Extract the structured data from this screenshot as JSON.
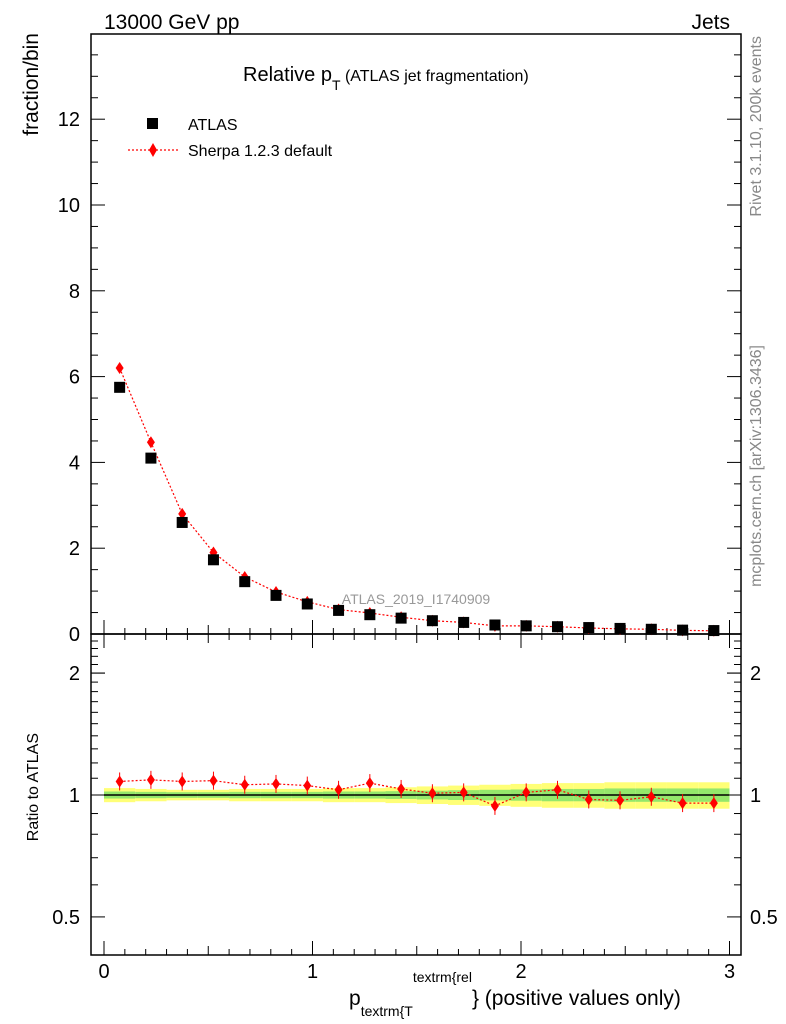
{
  "header": {
    "left": "13000 GeV pp",
    "right": "Jets"
  },
  "side_labels": {
    "top": "Rivet 3.1.10,  200k events",
    "bottom": "mcplots.cern.ch [arXiv:1306.3436]"
  },
  "main_plot": {
    "title_main": "Relative p",
    "title_sub": "T",
    "title_rest": " (ATLAS jet fragmentation)",
    "ylabel": "fraction/bin",
    "watermark": "ATLAS_2019_I1740909",
    "y_ticks": [
      "0",
      "2",
      "4",
      "6",
      "8",
      "10",
      "12"
    ]
  },
  "ratio_plot": {
    "ylabel": "Ratio to ATLAS",
    "y_ticks": [
      "0.5",
      "1",
      "2"
    ]
  },
  "x_axis": {
    "ticks": [
      "0",
      "1",
      "2",
      "3"
    ],
    "label_main": "p",
    "label_sub": "textrm{T",
    "label_sup": "textrm{rel",
    "label_rest": "} (positive values only)"
  },
  "legend": {
    "data_label": "ATLAS",
    "mc_label": "Sherpa 1.2.3 default"
  },
  "colors": {
    "data": "#000000",
    "mc": "#ff0000",
    "band_outer": "#ffff77",
    "band_inner": "#66dd66"
  },
  "chart_data": {
    "type": "scatter",
    "x": [
      0.075,
      0.225,
      0.375,
      0.525,
      0.675,
      0.825,
      0.975,
      1.125,
      1.275,
      1.425,
      1.575,
      1.725,
      1.875,
      2.025,
      2.175,
      2.325,
      2.475,
      2.625,
      2.775,
      2.925
    ],
    "series": [
      {
        "name": "ATLAS",
        "values": [
          5.75,
          4.1,
          2.6,
          1.73,
          1.22,
          0.9,
          0.7,
          0.55,
          0.45,
          0.37,
          0.31,
          0.27,
          0.21,
          0.19,
          0.17,
          0.15,
          0.13,
          0.11,
          0.09,
          0.08
        ]
      },
      {
        "name": "Sherpa 1.2.3 default",
        "values": [
          6.2,
          4.47,
          2.8,
          1.9,
          1.33,
          0.98,
          0.75,
          0.57,
          0.49,
          0.39,
          0.31,
          0.27,
          0.19,
          0.19,
          0.17,
          0.14,
          0.12,
          0.11,
          0.085,
          0.075
        ]
      }
    ],
    "ratio": {
      "x": [
        0.075,
        0.225,
        0.375,
        0.525,
        0.675,
        0.825,
        0.975,
        1.125,
        1.275,
        1.425,
        1.575,
        1.725,
        1.875,
        2.025,
        2.175,
        2.325,
        2.475,
        2.625,
        2.775,
        2.925
      ],
      "values": [
        1.08,
        1.09,
        1.08,
        1.085,
        1.06,
        1.065,
        1.055,
        1.03,
        1.07,
        1.035,
        1.01,
        1.015,
        0.94,
        1.015,
        1.03,
        0.975,
        0.97,
        0.99,
        0.955,
        0.955
      ],
      "band_outer": [
        0.04,
        0.035,
        0.03,
        0.03,
        0.035,
        0.035,
        0.035,
        0.04,
        0.04,
        0.045,
        0.05,
        0.055,
        0.06,
        0.065,
        0.07,
        0.07,
        0.075,
        0.075,
        0.075,
        0.075
      ],
      "band_inner": [
        0.02,
        0.018,
        0.016,
        0.016,
        0.018,
        0.018,
        0.018,
        0.02,
        0.02,
        0.022,
        0.025,
        0.028,
        0.03,
        0.032,
        0.035,
        0.035,
        0.038,
        0.038,
        0.038,
        0.038
      ]
    },
    "title": "Relative pT (ATLAS jet fragmentation)",
    "xlabel": "p_T^rel (positive values only)",
    "ylabel": "fraction/bin",
    "xlim": [
      -0.05,
      3.05
    ],
    "ylim": [
      0,
      14
    ],
    "ratio_ylim": [
      0.4,
      2.5
    ],
    "ratio_scale": "log"
  }
}
